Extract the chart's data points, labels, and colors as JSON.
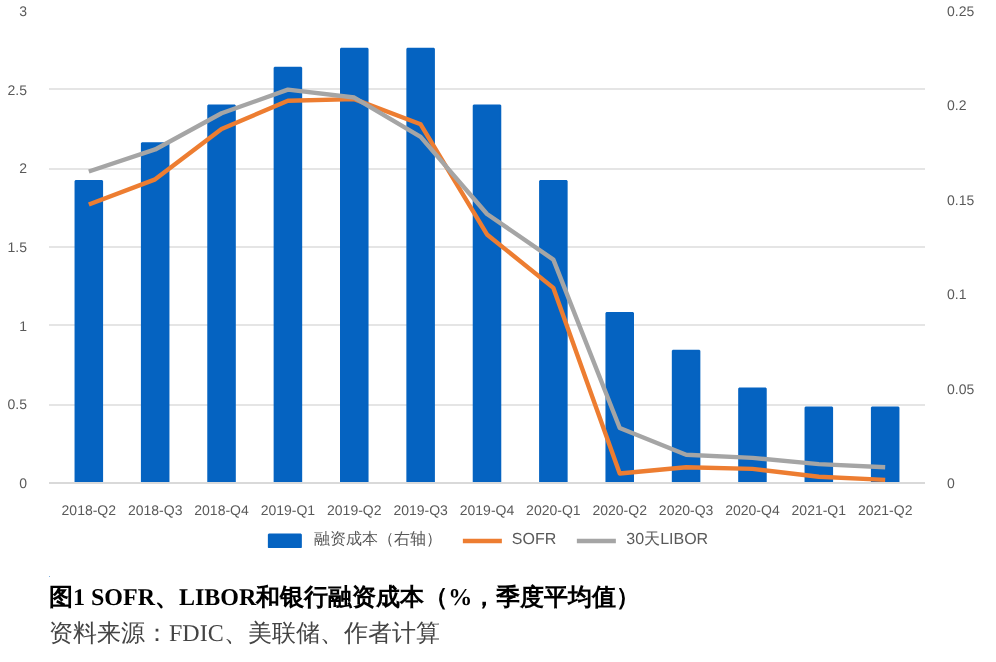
{
  "chart_data": {
    "type": "bar",
    "title": "图1 SOFR、LIBOR和银行融资成本（%，季度平均值）",
    "annotations": [
      "资料来源：FDIC、美联储、作者计算"
    ],
    "categories": [
      "2018-Q2",
      "2018-Q3",
      "2018-Q4",
      "2019-Q1",
      "2019-Q2",
      "2019-Q3",
      "2019-Q4",
      "2020-Q1",
      "2020-Q2",
      "2020-Q3",
      "2020-Q4",
      "2021-Q1",
      "2021-Q2"
    ],
    "series": [
      {
        "name": "融资成本（右轴）",
        "axis": "y2",
        "color": "#0563c1",
        "values": [
          0.16,
          0.18,
          0.2,
          0.22,
          0.23,
          0.23,
          0.2,
          0.16,
          0.09,
          0.07,
          0.05,
          0.04,
          0.04
        ]
      },
      {
        "name": "SOFR",
        "type": "line",
        "color": "#ed7d31",
        "values": [
          1.77,
          1.93,
          2.25,
          2.43,
          2.44,
          2.28,
          1.58,
          1.24,
          0.06,
          0.1,
          0.09,
          0.04,
          0.02
        ]
      },
      {
        "name": "30天LIBOR",
        "type": "line",
        "color": "#a5a5a5",
        "values": [
          1.98,
          2.12,
          2.35,
          2.5,
          2.45,
          2.2,
          1.71,
          1.42,
          0.35,
          0.18,
          0.16,
          0.12,
          0.1
        ]
      }
    ],
    "ylim": [
      0,
      3
    ],
    "yticks": [
      0,
      0.5,
      1,
      1.5,
      2,
      2.5,
      3
    ],
    "y2lim": [
      0,
      0.25
    ],
    "y2ticks": [
      0,
      0.05,
      0.1,
      0.15,
      0.2,
      0.25
    ],
    "grid": "y",
    "legend": "bottom",
    "line_style": "solid",
    "marker": "none"
  }
}
